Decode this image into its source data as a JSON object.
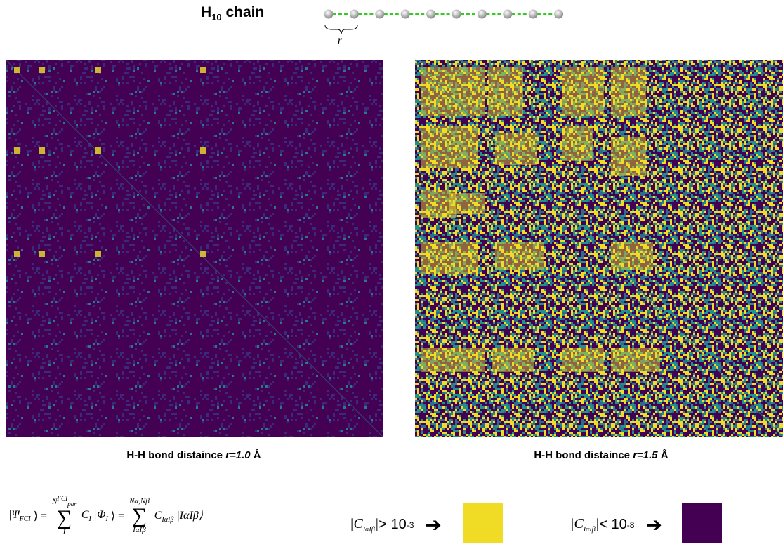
{
  "header": {
    "title": "H",
    "title_sub": "10",
    "title_rest": " chain",
    "bond_label": "r"
  },
  "panels": [
    {
      "caption": "H-H bond distaince ",
      "caption_r": "r=1.0",
      "caption_unit": " Å"
    },
    {
      "caption": "H-H bond distaince ",
      "caption_r": "r=1.5",
      "caption_unit": " Å"
    }
  ],
  "equation": {
    "lhs": "|Ψ",
    "lhs_sub": "FCI",
    "lhs_close": "⟩ =",
    "sum1": "∑",
    "sum1_top": "N",
    "sum1_top_sup": "FCI",
    "sum1_top_sub": "par",
    "sum1_bottom": "I",
    "term1": "C",
    "term1_sub": "I",
    "term1_ket": "|Φ",
    "term1_ket_sub": "I",
    "term1_close": "⟩ =",
    "sum2": "∑",
    "sum2_top": "Nα,Nβ",
    "sum2_bottom": "IαIβ",
    "term2": "C",
    "term2_sub": "IαIβ",
    "term2_ket": "|IαIβ⟩"
  },
  "legend": [
    {
      "open": "|C",
      "sub": "IαIβ",
      "close": "|",
      "relation": " > 10",
      "exponent": "-3",
      "color": "#f0dc24"
    },
    {
      "open": "|C",
      "sub": "IαIβ",
      "close": "|",
      "relation": " < 10",
      "exponent": "-8",
      "color": "#440154"
    }
  ]
}
